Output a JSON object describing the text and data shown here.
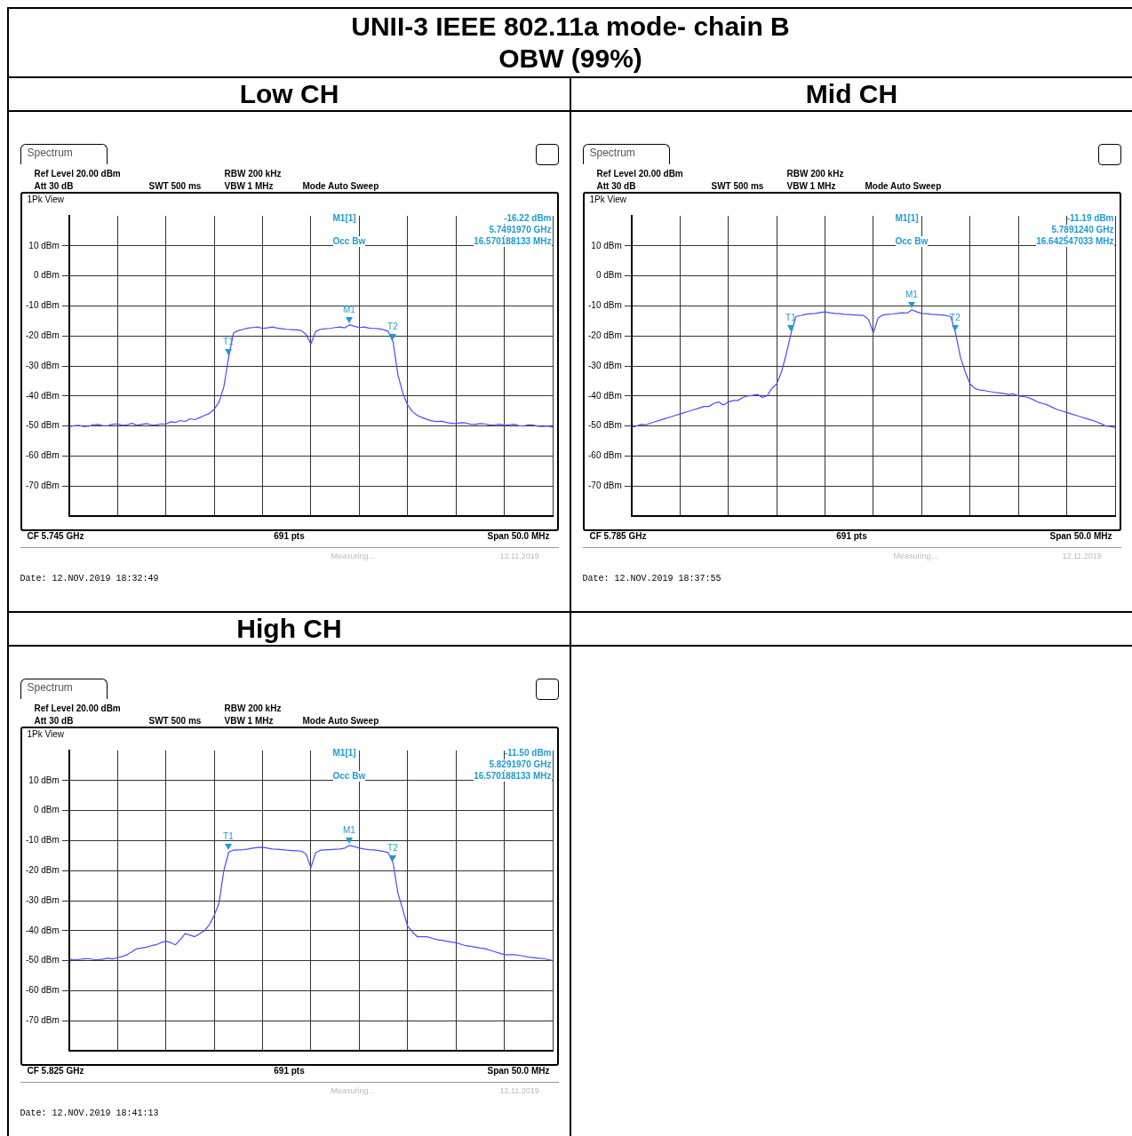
{
  "chart_data": [
    {
      "type": "line",
      "title": "UNII-3 IEEE 802.11a mode- chain B\nOBW (99%)",
      "subtitle": "Low CH",
      "categories": [
        null,
        null,
        null,
        null,
        null,
        null,
        null,
        null,
        null,
        null,
        null,
        null,
        null,
        null,
        null,
        null,
        null,
        null,
        null,
        null,
        null,
        null,
        null,
        null,
        null,
        null,
        null,
        null,
        null,
        null,
        null,
        null,
        null,
        null,
        null,
        null,
        null,
        null,
        null,
        null,
        null,
        null,
        null,
        null,
        null,
        null,
        null,
        null,
        null,
        null,
        null,
        null,
        null,
        null,
        null,
        null,
        null,
        null,
        null,
        null,
        null,
        null,
        null,
        null,
        null,
        null,
        null,
        null,
        null,
        null,
        null,
        null,
        null,
        null,
        null,
        null,
        null,
        null,
        null,
        null,
        null,
        null,
        null,
        null,
        null,
        null,
        null,
        null,
        null,
        null,
        null,
        null,
        null,
        null,
        null,
        null,
        null,
        null,
        null,
        null,
        null
      ],
      "series": [
        {
          "color": "#4a4aff",
          "values": [
            -50.3,
            -49.9,
            -49.8,
            -50.2,
            -50.1,
            -49.6,
            -49.5,
            -49.9,
            -49.9,
            -49.4,
            -49.3,
            -49.8,
            -49.6,
            -49.1,
            -49.8,
            -49.5,
            -49.2,
            -49.6,
            -49.7,
            -49.3,
            -49.4,
            -48.6,
            -48.8,
            -48.2,
            -48.5,
            -47.6,
            -47.9,
            -47.2,
            -46.5,
            -45.8,
            -44.5,
            -42,
            -37,
            -27,
            -19,
            -18.2,
            -17.8,
            -17.4,
            -17.2,
            -17,
            -17.5,
            -17.3,
            -17,
            -17.4,
            -17.6,
            -17.8,
            -17.9,
            -18,
            -18.2,
            -19.5,
            -22.7,
            -18.5,
            -17.8,
            -17.6,
            -17.5,
            -17.2,
            -17,
            -17.3,
            -16.3,
            -16.8,
            -17.2,
            -17,
            -17.4,
            -17.5,
            -17.6,
            -17.9,
            -18.5,
            -22,
            -33,
            -39,
            -43,
            -45.2,
            -46.5,
            -47.2,
            -47.8,
            -48.3,
            -48.5,
            -48.4,
            -48.8,
            -49.1,
            -49.2,
            -48.9,
            -49,
            -49.4,
            -49.5,
            -49.2,
            -49.3,
            -49.7,
            -49.6,
            -49.4,
            -49.8,
            -49.6,
            -49.4,
            -49.9,
            -50,
            -49.6,
            -49.7,
            -50.1,
            -50.2,
            -50,
            -50.4
          ]
        }
      ],
      "ylim": [
        -80,
        20
      ],
      "yticks": [
        {
          "value": 10,
          "label": "10 dBm"
        },
        {
          "value": 0,
          "label": "0 dBm"
        },
        {
          "value": -10,
          "label": "-10 dBm"
        },
        {
          "value": -20,
          "label": "-20 dBm"
        },
        {
          "value": -30,
          "label": "-30 dBm"
        },
        {
          "value": -40,
          "label": "-40 dBm"
        },
        {
          "value": -50,
          "label": "-50 dBm"
        },
        {
          "value": -60,
          "label": "-60 dBm"
        },
        {
          "value": -70,
          "label": "-70 dBm"
        }
      ],
      "grid": true,
      "legend": false,
      "tick_labels": "y",
      "marker": "none",
      "line_style": "solid",
      "annotations": [
        "Spectrum",
        "Ref Level 20.00 dBm",
        "Att 30 dB",
        "SWT 500 ms",
        "RBW 200 kHz",
        "VBW 1 MHz",
        "Mode Auto Sweep",
        "1Pk View",
        "M1[1]",
        "-16.22 dBm",
        "5.7491970 GHz",
        "Occ Bw",
        "16.570188133 MHz",
        "CF 5.745 GHz",
        "691 pts",
        "Span 50.0 MHz",
        "Measuring...",
        "12.11.2019",
        "Date: 12.NOV.2019 18:32:49",
        "M1",
        "T1",
        "T2"
      ]
    },
    {
      "type": "line",
      "subtitle": "Mid CH",
      "categories": [
        null,
        null,
        null,
        null,
        null,
        null,
        null,
        null,
        null,
        null,
        null,
        null,
        null,
        null,
        null,
        null,
        null,
        null,
        null,
        null,
        null,
        null,
        null,
        null,
        null,
        null,
        null,
        null,
        null,
        null,
        null,
        null,
        null,
        null,
        null,
        null,
        null,
        null,
        null,
        null,
        null,
        null,
        null,
        null,
        null,
        null,
        null,
        null,
        null,
        null,
        null,
        null,
        null,
        null,
        null,
        null,
        null,
        null,
        null,
        null,
        null,
        null,
        null,
        null,
        null,
        null,
        null,
        null,
        null,
        null,
        null,
        null,
        null,
        null,
        null,
        null,
        null,
        null,
        null,
        null,
        null,
        null,
        null,
        null,
        null,
        null,
        null,
        null,
        null,
        null,
        null,
        null,
        null,
        null,
        null,
        null,
        null,
        null,
        null,
        null,
        null
      ],
      "series": [
        {
          "color": "#4a4aff",
          "values": [
            -50.5,
            -50,
            -49.5,
            -49.6,
            -49,
            -48.5,
            -48,
            -47.5,
            -47,
            -46.5,
            -46,
            -45.5,
            -45,
            -44.5,
            -44,
            -43.5,
            -43.5,
            -42.5,
            -42,
            -43,
            -42,
            -41.5,
            -41.5,
            -40.5,
            -40,
            -39.8,
            -39.5,
            -40.5,
            -40,
            -37.5,
            -36,
            -32,
            -26,
            -19,
            -13.5,
            -13.2,
            -12.8,
            -12.6,
            -12.5,
            -12.2,
            -12,
            -12.3,
            -12.5,
            -12.6,
            -12.8,
            -12.9,
            -13,
            -13.1,
            -13.2,
            -14.5,
            -19,
            -14,
            -13,
            -12.8,
            -12.7,
            -12.5,
            -12.3,
            -12.4,
            -11.3,
            -12,
            -12.5,
            -12.6,
            -12.8,
            -12.9,
            -13,
            -13.2,
            -13.5,
            -19,
            -27,
            -32,
            -36,
            -37.5,
            -38,
            -38.2,
            -38.5,
            -38.8,
            -39,
            -39.2,
            -39.5,
            -39.3,
            -40,
            -40.2,
            -40.5,
            -41.2,
            -42,
            -42.5,
            -43,
            -43.8,
            -44.5,
            -45,
            -45.5,
            -46,
            -46.5,
            -47,
            -47.5,
            -48,
            -48.5,
            -49.2,
            -50,
            -50.2,
            -50.5
          ]
        }
      ],
      "ylim": [
        -80,
        20
      ],
      "yticks": [
        {
          "value": 10,
          "label": "10 dBm"
        },
        {
          "value": 0,
          "label": "0 dBm"
        },
        {
          "value": -10,
          "label": "-10 dBm"
        },
        {
          "value": -20,
          "label": "-20 dBm"
        },
        {
          "value": -30,
          "label": "-30 dBm"
        },
        {
          "value": -40,
          "label": "-40 dBm"
        },
        {
          "value": -50,
          "label": "-50 dBm"
        },
        {
          "value": -60,
          "label": "-60 dBm"
        },
        {
          "value": -70,
          "label": "-70 dBm"
        }
      ],
      "grid": true,
      "legend": false,
      "tick_labels": "y",
      "marker": "none",
      "line_style": "solid",
      "annotations": [
        "Spectrum",
        "Ref Level 20.00 dBm",
        "Att 30 dB",
        "SWT 500 ms",
        "RBW 200 kHz",
        "VBW 1 MHz",
        "Mode Auto Sweep",
        "1Pk View",
        "M1[1]",
        "-11.19 dBm",
        "5.7891240 GHz",
        "Occ Bw",
        "16.642547033 MHz",
        "CF 5.785 GHz",
        "691 pts",
        "Span 50.0 MHz",
        "Measuring...",
        "12.11.2019",
        "Date: 12.NOV.2019 18:37:55",
        "M1",
        "T1",
        "T2"
      ]
    },
    {
      "type": "line",
      "subtitle": "High CH",
      "categories": [
        null,
        null,
        null,
        null,
        null,
        null,
        null,
        null,
        null,
        null,
        null,
        null,
        null,
        null,
        null,
        null,
        null,
        null,
        null,
        null,
        null,
        null,
        null,
        null,
        null,
        null,
        null,
        null,
        null,
        null,
        null,
        null,
        null,
        null,
        null,
        null,
        null,
        null,
        null,
        null,
        null,
        null,
        null,
        null,
        null,
        null,
        null,
        null,
        null,
        null,
        null,
        null,
        null,
        null,
        null,
        null,
        null,
        null,
        null,
        null,
        null,
        null,
        null,
        null,
        null,
        null,
        null,
        null,
        null,
        null,
        null,
        null,
        null,
        null,
        null,
        null,
        null,
        null,
        null,
        null,
        null,
        null,
        null,
        null,
        null,
        null,
        null,
        null,
        null,
        null,
        null,
        null,
        null,
        null,
        null,
        null,
        null,
        null,
        null,
        null,
        null
      ],
      "series": [
        {
          "color": "#4a4aff",
          "values": [
            -49.5,
            -49.8,
            -49.6,
            -49.4,
            -49.3,
            -49.6,
            -49.7,
            -49.5,
            -49.2,
            -49.4,
            -49,
            -48.6,
            -48,
            -47,
            -46,
            -45.8,
            -45.5,
            -45,
            -44.7,
            -44,
            -43.5,
            -44,
            -44.7,
            -43,
            -41,
            -41.5,
            -42,
            -41,
            -40,
            -38,
            -35,
            -30.8,
            -20,
            -13.8,
            -13.2,
            -13.1,
            -13,
            -12.8,
            -12.5,
            -12.3,
            -12.2,
            -12.5,
            -12.8,
            -12.9,
            -13,
            -13.2,
            -13.3,
            -13.4,
            -13.5,
            -14.5,
            -19,
            -14,
            -13.2,
            -13.1,
            -13,
            -12.9,
            -12.8,
            -12.5,
            -11.6,
            -12,
            -12.5,
            -12.8,
            -13,
            -13.1,
            -13.3,
            -13.6,
            -14,
            -17.5,
            -27.5,
            -33,
            -38.5,
            -40.5,
            -42,
            -42,
            -42,
            -42.5,
            -43,
            -43.2,
            -43.5,
            -43.8,
            -44,
            -44.5,
            -45,
            -45.2,
            -45.5,
            -45.8,
            -46,
            -46.5,
            -47,
            -47.5,
            -48,
            -48,
            -48,
            -48.2,
            -48.5,
            -48.8,
            -49,
            -49.2,
            -49.3,
            -49.6,
            -50
          ]
        }
      ],
      "ylim": [
        -80,
        20
      ],
      "yticks": [
        {
          "value": 10,
          "label": "10 dBm"
        },
        {
          "value": 0,
          "label": "0 dBm"
        },
        {
          "value": -10,
          "label": "-10 dBm"
        },
        {
          "value": -20,
          "label": "-20 dBm"
        },
        {
          "value": -30,
          "label": "-30 dBm"
        },
        {
          "value": -40,
          "label": "-40 dBm"
        },
        {
          "value": -50,
          "label": "-50 dBm"
        },
        {
          "value": -60,
          "label": "-60 dBm"
        },
        {
          "value": -70,
          "label": "-70 dBm"
        }
      ],
      "grid": true,
      "legend": false,
      "tick_labels": "y",
      "marker": "none",
      "line_style": "solid",
      "annotations": [
        "Spectrum",
        "Ref Level 20.00 dBm",
        "Att 30 dB",
        "SWT 500 ms",
        "RBW 200 kHz",
        "VBW 1 MHz",
        "Mode Auto Sweep",
        "1Pk View",
        "M1[1]",
        "-11.50 dBm",
        "5.8291970 GHz",
        "Occ Bw",
        "16.570188133 MHz",
        "CF 5.825 GHz",
        "691 pts",
        "Span 50.0 MHz",
        "Measuring...",
        "12.11.2019",
        "Date: 12.NOV.2019 18:41:13",
        "M1",
        "T1",
        "T2"
      ]
    }
  ]
}
